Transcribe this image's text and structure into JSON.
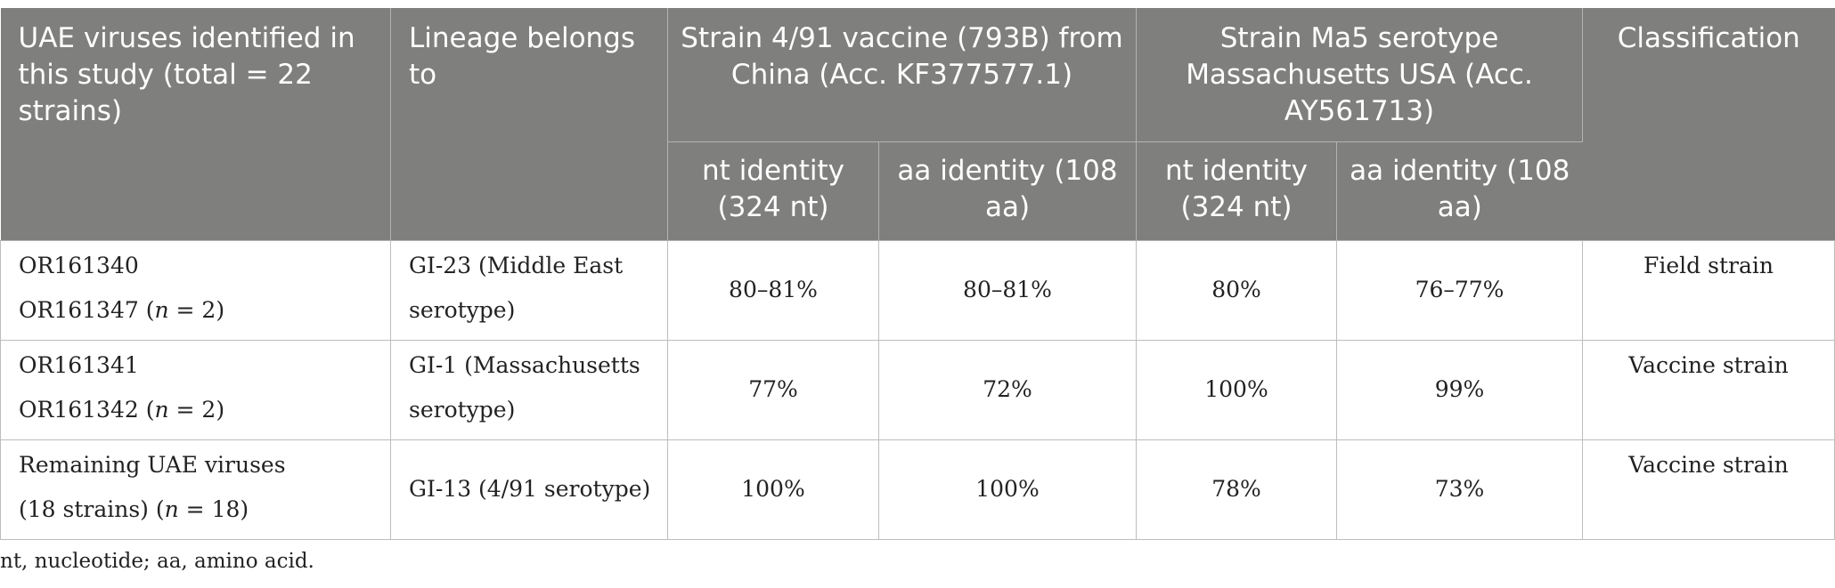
{
  "header": {
    "col_virus": "UAE viruses identified in this study (total = 22 strains)",
    "col_lineage": "Lineage belongs to",
    "group_vaccine": "Strain 4/91 vaccine (793B) from China (Acc. KF377577.1)",
    "group_ma5": "Strain Ma5 serotype Massachusetts USA (Acc. AY561713)",
    "col_classification": "Classification",
    "sub_nt_1": "nt identity (324 nt)",
    "sub_aa_1": "aa identity (108 aa)",
    "sub_nt_2": "nt identity (324 nt)",
    "sub_aa_2": "aa identity (108 aa)"
  },
  "rows": [
    {
      "virus_line1": "OR161340",
      "virus_line2_prefix": "OR161347 (",
      "n_var": "n",
      "virus_line2_suffix": " = 2)",
      "lineage_line1": "GI-23 (Middle East",
      "lineage_line2": "serotype)",
      "nt_491": "80–81%",
      "aa_491": "80–81%",
      "nt_ma5": "80%",
      "aa_ma5": "76–77%",
      "classification": "Field strain"
    },
    {
      "virus_line1": "OR161341",
      "virus_line2_prefix": "OR161342 (",
      "n_var": "n",
      "virus_line2_suffix": " = 2)",
      "lineage_line1": "GI-1 (Massachusetts",
      "lineage_line2": "serotype)",
      "nt_491": "77%",
      "aa_491": "72%",
      "nt_ma5": "100%",
      "aa_ma5": "99%",
      "classification": "Vaccine strain"
    },
    {
      "virus_line1": "Remaining UAE viruses",
      "virus_line2_prefix": "(18 strains) (",
      "n_var": "n",
      "virus_line2_suffix": " = 18)",
      "lineage_line1": "GI-13 (4/91 serotype)",
      "lineage_line2": "",
      "nt_491": "100%",
      "aa_491": "100%",
      "nt_ma5": "78%",
      "aa_ma5": "73%",
      "classification": "Vaccine strain"
    }
  ],
  "footnote": "nt, nucleotide; aa, amino acid."
}
